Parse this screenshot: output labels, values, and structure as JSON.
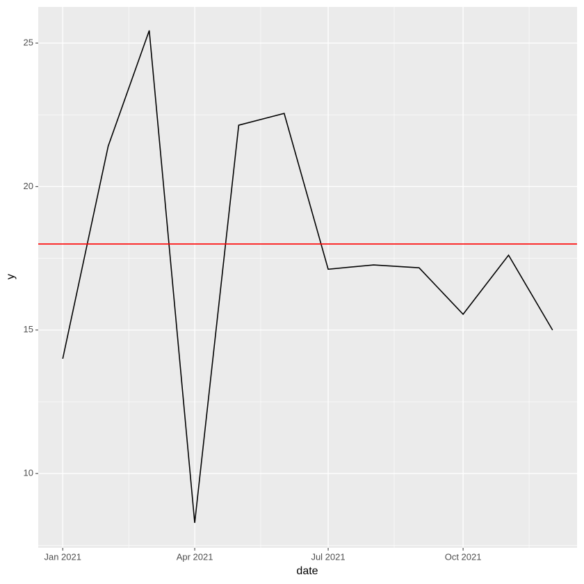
{
  "chart_data": {
    "type": "line",
    "x_label": "date",
    "y_label": "y",
    "x": [
      "2021-01",
      "2021-02",
      "2021-03",
      "2021-04",
      "2021-05",
      "2021-06",
      "2021-07",
      "2021-08",
      "2021-09",
      "2021-10",
      "2021-11",
      "2021-12"
    ],
    "series": [
      {
        "name": "y",
        "color": "#000000",
        "values": [
          14.0,
          21.41,
          25.44,
          8.28,
          22.14,
          22.55,
          17.12,
          17.27,
          17.17,
          15.55,
          17.61,
          15.0
        ]
      }
    ],
    "hline": {
      "value": 18,
      "color": "#ff0000"
    },
    "ylim": [
      7.41,
      26.26
    ],
    "yticks": [
      10,
      15,
      20,
      25
    ],
    "xticks": [
      {
        "value": "2021-01",
        "label": "Jan 2021"
      },
      {
        "value": "2021-04",
        "label": "Apr 2021"
      },
      {
        "value": "2021-07",
        "label": "Jul 2021"
      },
      {
        "value": "2021-10",
        "label": "Oct 2021"
      }
    ],
    "grid": true
  }
}
